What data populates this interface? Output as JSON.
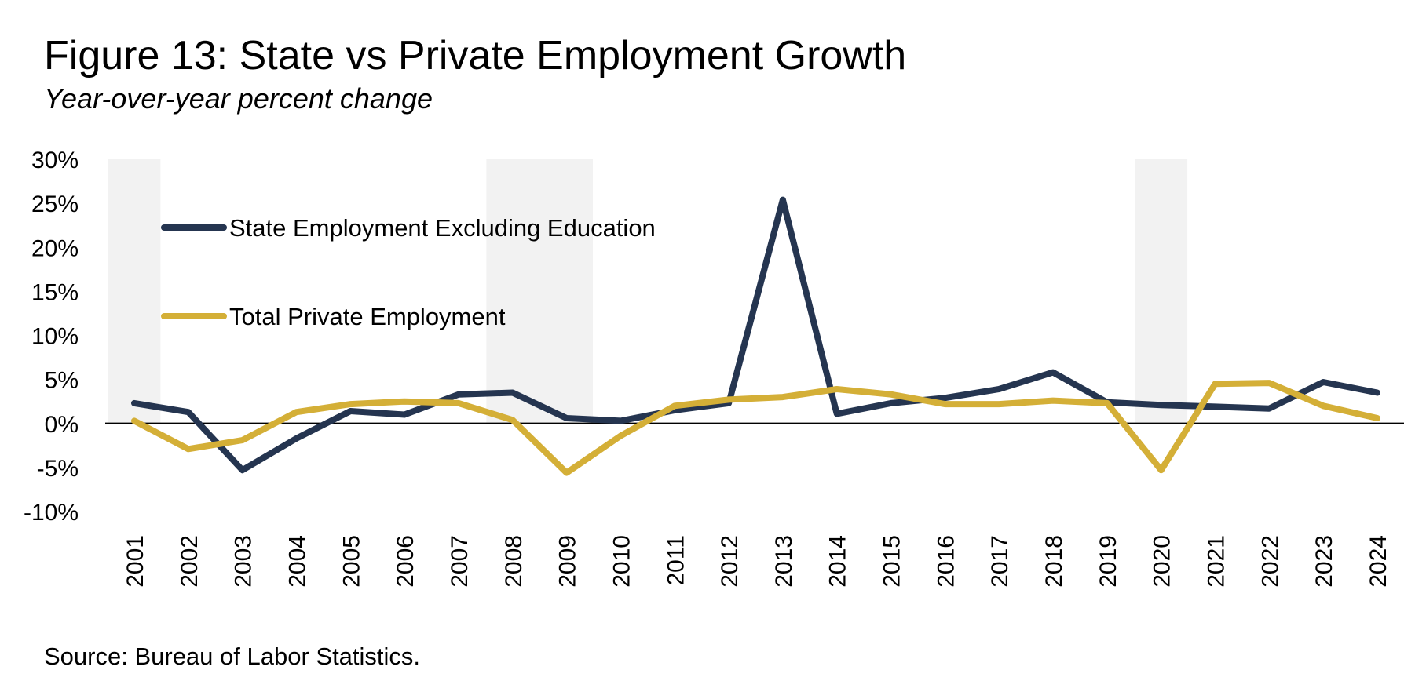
{
  "title": "Figure 13: State vs Private Employment Growth",
  "subtitle": "Year-over-year percent change",
  "source": "Source: Bureau of Labor Statistics.",
  "colors": {
    "state": "#253550",
    "private": "#D4AF37",
    "recession": "#F2F2F2",
    "zero_line": "#000000"
  },
  "chart_data": {
    "type": "line",
    "title": "Figure 13: State vs Private Employment Growth",
    "subtitle": "Year-over-year percent change",
    "xlabel": "",
    "ylabel": "",
    "categories": [
      "2001",
      "2002",
      "2003",
      "2004",
      "2005",
      "2006",
      "2007",
      "2008",
      "2009",
      "2010",
      "2011",
      "2012",
      "2013",
      "2014",
      "2015",
      "2016",
      "2017",
      "2018",
      "2019",
      "2020",
      "2021",
      "2022",
      "2023",
      "2024"
    ],
    "ylim": [
      -10,
      30
    ],
    "yticks": [
      -10,
      -5,
      0,
      5,
      10,
      15,
      20,
      25,
      30
    ],
    "ytick_labels": [
      "-10%",
      "-5%",
      "0%",
      "5%",
      "10%",
      "15%",
      "20%",
      "25%",
      "30%"
    ],
    "legend_position": "top-left",
    "recession_shading": [
      {
        "start": "2001",
        "end": "2001"
      },
      {
        "start": "2008",
        "end": "2009"
      },
      {
        "start": "2020",
        "end": "2020"
      }
    ],
    "series": [
      {
        "name": "State Employment Excluding Education",
        "color": "#253550",
        "values": [
          2.3,
          1.3,
          -5.3,
          -1.7,
          1.4,
          1.0,
          3.3,
          3.5,
          0.6,
          0.3,
          1.5,
          2.3,
          25.4,
          1.1,
          2.3,
          2.9,
          3.9,
          5.8,
          2.4,
          2.1,
          1.9,
          1.7,
          4.7,
          3.5
        ]
      },
      {
        "name": "Total Private Employment",
        "color": "#D4AF37",
        "values": [
          0.3,
          -2.9,
          -1.9,
          1.3,
          2.2,
          2.5,
          2.3,
          0.4,
          -5.6,
          -1.4,
          2.0,
          2.7,
          3.0,
          3.9,
          3.3,
          2.2,
          2.2,
          2.6,
          2.3,
          -5.3,
          4.5,
          4.6,
          2.0,
          0.6
        ]
      }
    ]
  }
}
